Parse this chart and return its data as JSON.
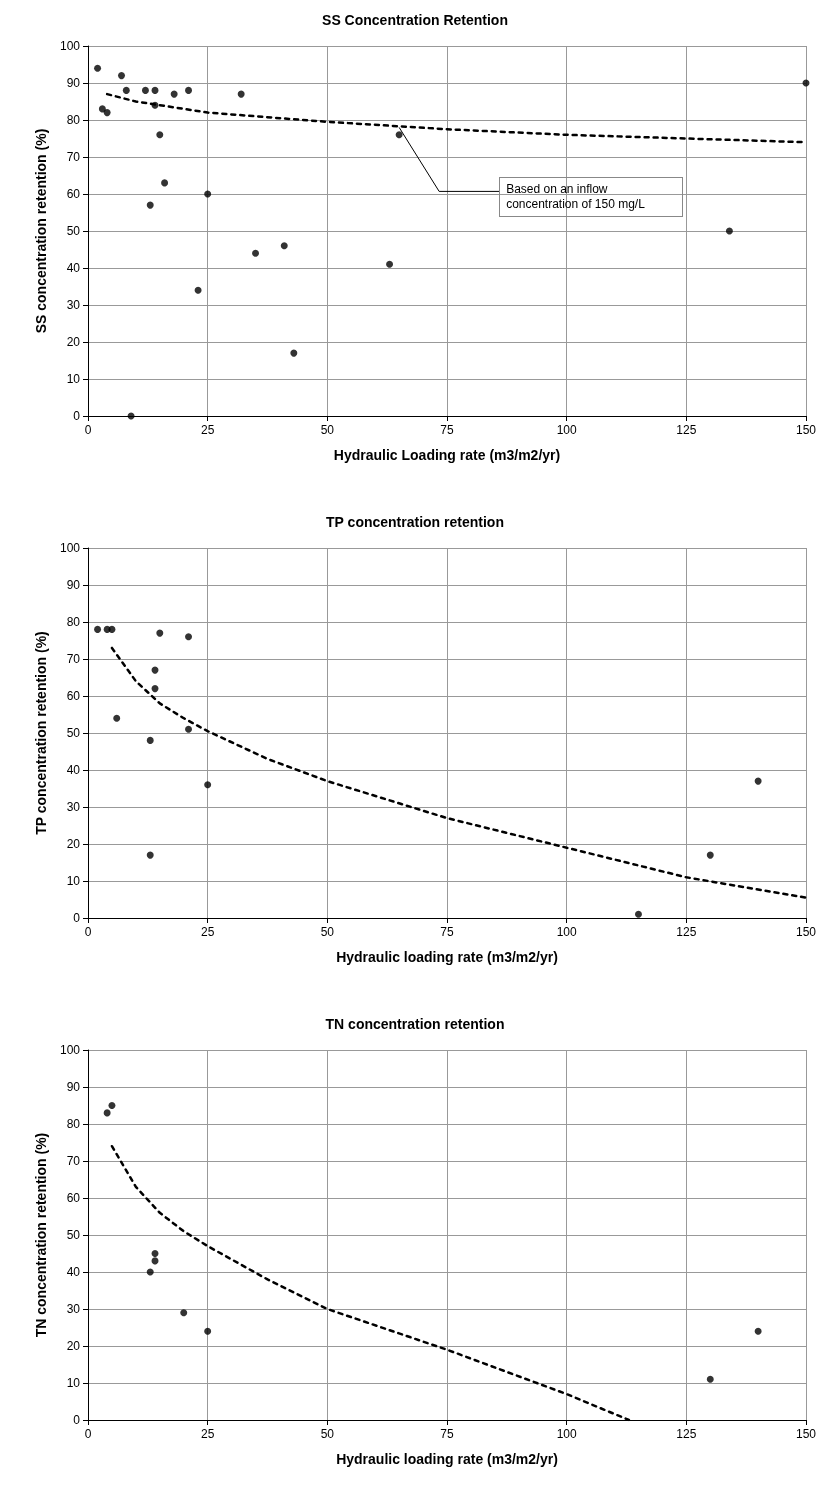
{
  "chart_data": [
    {
      "type": "scatter",
      "title": "SS Concentration Retention",
      "xlabel": "Hydraulic Loading rate (m3/m2/yr)",
      "ylabel": "SS concentration retention (%)",
      "xlim": [
        0,
        150
      ],
      "xticks": [
        0,
        25,
        50,
        75,
        100,
        125,
        150
      ],
      "ylim": [
        0,
        100
      ],
      "yticks": [
        0,
        10,
        20,
        30,
        40,
        50,
        60,
        70,
        80,
        90,
        100
      ],
      "grid": true,
      "marker": "circle",
      "annotations": [
        {
          "text": "Based on an inflow concentration of 150 mg/L",
          "x": 65,
          "y": 78
        }
      ],
      "series": [
        {
          "color": "#000000",
          "x": [
            2,
            3,
            4,
            7,
            8,
            9,
            12,
            13,
            14,
            14,
            15,
            16,
            18,
            21,
            23,
            25,
            32,
            35,
            41,
            43,
            63,
            65,
            134,
            150
          ],
          "values": [
            94,
            83,
            82,
            92,
            88,
            0,
            88,
            57,
            88,
            84,
            76,
            63,
            87,
            88,
            34,
            60,
            87,
            44,
            46,
            17,
            41,
            76,
            50,
            90
          ]
        },
        {
          "type": "line",
          "color": "#000000",
          "line_style": "dashed",
          "marker": "none",
          "x": [
            4,
            10,
            25,
            50,
            75,
            100,
            125,
            150
          ],
          "values": [
            87,
            85,
            82,
            79.5,
            77.5,
            76,
            75,
            74
          ]
        }
      ]
    },
    {
      "type": "scatter",
      "title": "TP concentration retention",
      "xlabel": "Hydraulic loading rate (m3/m2/yr)",
      "ylabel": "TP concentration retention (%)",
      "xlim": [
        0,
        150
      ],
      "xticks": [
        0,
        25,
        50,
        75,
        100,
        125,
        150
      ],
      "ylim": [
        0,
        100
      ],
      "yticks": [
        0,
        10,
        20,
        30,
        40,
        50,
        60,
        70,
        80,
        90,
        100
      ],
      "grid": true,
      "marker": "circle",
      "series": [
        {
          "color": "#000000",
          "x": [
            2,
            4,
            5,
            6,
            13,
            13,
            14,
            14,
            15,
            21,
            21,
            25,
            115,
            130,
            140
          ],
          "values": [
            78,
            78,
            78,
            54,
            48,
            17,
            67,
            62,
            77,
            76,
            51,
            36,
            1,
            17,
            37
          ]
        },
        {
          "type": "line",
          "color": "#000000",
          "line_style": "dashed",
          "marker": "none",
          "x": [
            5,
            10,
            15,
            20,
            25,
            37.5,
            50,
            75,
            100,
            125,
            150
          ],
          "values": [
            73,
            64,
            58,
            54,
            50.5,
            43,
            37,
            27,
            19,
            11,
            5.5
          ]
        }
      ]
    },
    {
      "type": "scatter",
      "title": "TN concentration retention",
      "xlabel": "Hydraulic loading rate (m3/m2/yr)",
      "ylabel": "TN concentration retention (%)",
      "xlim": [
        0,
        150
      ],
      "xticks": [
        0,
        25,
        50,
        75,
        100,
        125,
        150
      ],
      "ylim": [
        0,
        100
      ],
      "yticks": [
        0,
        10,
        20,
        30,
        40,
        50,
        60,
        70,
        80,
        90,
        100
      ],
      "grid": true,
      "marker": "circle",
      "series": [
        {
          "color": "#000000",
          "x": [
            4,
            5,
            13,
            14,
            14,
            20,
            25,
            130,
            140
          ],
          "values": [
            83,
            85,
            40,
            43,
            45,
            29,
            24,
            11,
            24
          ]
        },
        {
          "type": "line",
          "color": "#000000",
          "line_style": "dashed",
          "marker": "none",
          "x": [
            5,
            10,
            15,
            20,
            25,
            37.5,
            50,
            75,
            100,
            113
          ],
          "values": [
            74,
            63,
            56,
            51,
            47,
            38,
            30,
            19,
            7,
            0
          ]
        }
      ]
    }
  ]
}
